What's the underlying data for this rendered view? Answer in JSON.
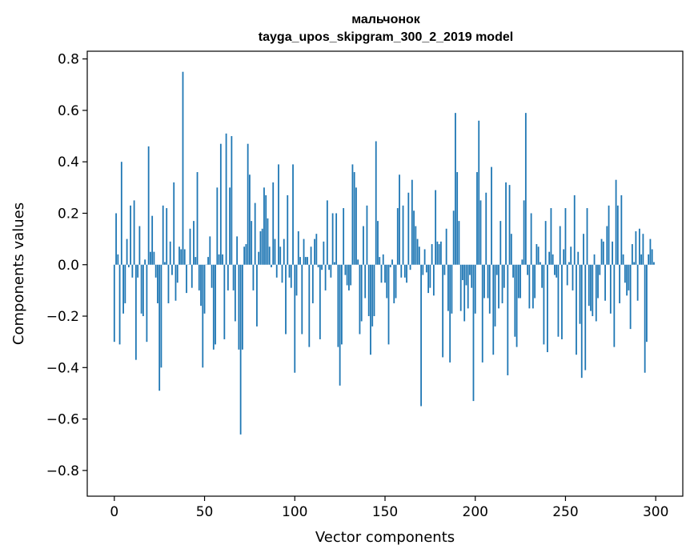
{
  "chart_data": {
    "type": "bar",
    "title": "мальчонок",
    "subtitle": "tayga_upos_skipgram_300_2_2019 model",
    "xlabel": "Vector components",
    "ylabel": "Components values",
    "xlim": [
      -15,
      315
    ],
    "ylim": [
      -0.9,
      0.83
    ],
    "xticks": [
      0,
      50,
      100,
      150,
      200,
      250,
      300
    ],
    "xtick_labels": [
      "0",
      "50",
      "100",
      "150",
      "200",
      "250",
      "300"
    ],
    "yticks": [
      -0.8,
      -0.6,
      -0.4,
      -0.2,
      0.0,
      0.2,
      0.4,
      0.6,
      0.8
    ],
    "ytick_labels": [
      "−0.8",
      "−0.6",
      "−0.4",
      "−0.2",
      "0.0",
      "0.2",
      "0.4",
      "0.6",
      "0.8"
    ],
    "bar_color": "#1f77b4",
    "grid": false,
    "legend": "none",
    "x": [
      0,
      1,
      2,
      3,
      4,
      5,
      6,
      7,
      8,
      9,
      10,
      11,
      12,
      13,
      14,
      15,
      16,
      17,
      18,
      19,
      20,
      21,
      22,
      23,
      24,
      25,
      26,
      27,
      28,
      29,
      30,
      31,
      32,
      33,
      34,
      35,
      36,
      37,
      38,
      39,
      40,
      41,
      42,
      43,
      44,
      45,
      46,
      47,
      48,
      49,
      50,
      51,
      52,
      53,
      54,
      55,
      56,
      57,
      58,
      59,
      60,
      61,
      62,
      63,
      64,
      65,
      66,
      67,
      68,
      69,
      70,
      71,
      72,
      73,
      74,
      75,
      76,
      77,
      78,
      79,
      80,
      81,
      82,
      83,
      84,
      85,
      86,
      87,
      88,
      89,
      90,
      91,
      92,
      93,
      94,
      95,
      96,
      97,
      98,
      99,
      100,
      101,
      102,
      103,
      104,
      105,
      106,
      107,
      108,
      109,
      110,
      111,
      112,
      113,
      114,
      115,
      116,
      117,
      118,
      119,
      120,
      121,
      122,
      123,
      124,
      125,
      126,
      127,
      128,
      129,
      130,
      131,
      132,
      133,
      134,
      135,
      136,
      137,
      138,
      139,
      140,
      141,
      142,
      143,
      144,
      145,
      146,
      147,
      148,
      149,
      150,
      151,
      152,
      153,
      154,
      155,
      156,
      157,
      158,
      159,
      160,
      161,
      162,
      163,
      164,
      165,
      166,
      167,
      168,
      169,
      170,
      171,
      172,
      173,
      174,
      175,
      176,
      177,
      178,
      179,
      180,
      181,
      182,
      183,
      184,
      185,
      186,
      187,
      188,
      189,
      190,
      191,
      192,
      193,
      194,
      195,
      196,
      197,
      198,
      199,
      200,
      201,
      202,
      203,
      204,
      205,
      206,
      207,
      208,
      209,
      210,
      211,
      212,
      213,
      214,
      215,
      216,
      217,
      218,
      219,
      220,
      221,
      222,
      223,
      224,
      225,
      226,
      227,
      228,
      229,
      230,
      231,
      232,
      233,
      234,
      235,
      236,
      237,
      238,
      239,
      240,
      241,
      242,
      243,
      244,
      245,
      246,
      247,
      248,
      249,
      250,
      251,
      252,
      253,
      254,
      255,
      256,
      257,
      258,
      259,
      260,
      261,
      262,
      263,
      264,
      265,
      266,
      267,
      268,
      269,
      270,
      271,
      272,
      273,
      274,
      275,
      276,
      277,
      278,
      279,
      280,
      281,
      282,
      283,
      284,
      285,
      286,
      287,
      288,
      289,
      290,
      291,
      292,
      293,
      294,
      295,
      296,
      297,
      298,
      299
    ],
    "values": [
      -0.3,
      0.2,
      0.04,
      -0.31,
      0.4,
      -0.19,
      -0.15,
      0.1,
      -0.01,
      0.23,
      -0.05,
      0.25,
      -0.37,
      -0.05,
      0.15,
      -0.19,
      -0.2,
      0.02,
      -0.3,
      0.46,
      0.05,
      0.19,
      0.05,
      -0.05,
      -0.15,
      -0.49,
      -0.4,
      0.23,
      0.01,
      0.22,
      -0.15,
      0.09,
      -0.04,
      0.32,
      -0.14,
      -0.07,
      0.07,
      0.06,
      0.75,
      0.06,
      -0.11,
      0.0,
      0.14,
      -0.09,
      0.17,
      0.03,
      0.36,
      -0.1,
      -0.16,
      -0.4,
      -0.19,
      0.0,
      0.03,
      0.11,
      -0.09,
      -0.33,
      -0.31,
      0.3,
      0.04,
      0.47,
      0.04,
      -0.29,
      0.51,
      -0.1,
      0.3,
      0.5,
      -0.1,
      -0.22,
      0.11,
      -0.33,
      -0.66,
      -0.33,
      0.07,
      0.08,
      0.47,
      0.35,
      0.17,
      -0.1,
      0.24,
      -0.24,
      0.05,
      0.13,
      0.14,
      0.3,
      0.27,
      0.18,
      0.07,
      -0.01,
      0.32,
      0.1,
      -0.05,
      0.39,
      0.07,
      -0.07,
      0.1,
      -0.27,
      0.27,
      -0.05,
      -0.09,
      0.39,
      -0.42,
      -0.12,
      0.13,
      0.03,
      -0.27,
      0.1,
      0.03,
      0.03,
      -0.32,
      0.07,
      -0.15,
      0.1,
      0.12,
      -0.01,
      -0.29,
      -0.02,
      0.09,
      -0.1,
      0.25,
      -0.02,
      -0.05,
      0.2,
      0.01,
      0.2,
      -0.32,
      -0.47,
      -0.31,
      0.22,
      -0.04,
      -0.08,
      -0.1,
      -0.08,
      0.39,
      0.36,
      0.3,
      0.02,
      -0.27,
      -0.22,
      0.15,
      -0.13,
      0.23,
      -0.2,
      -0.35,
      -0.24,
      -0.2,
      0.48,
      0.17,
      0.03,
      -0.07,
      0.04,
      -0.07,
      -0.13,
      -0.31,
      -0.01,
      0.02,
      -0.15,
      -0.13,
      0.22,
      0.35,
      -0.05,
      0.23,
      -0.05,
      -0.07,
      0.28,
      -0.02,
      0.33,
      0.21,
      0.15,
      0.1,
      0.07,
      -0.55,
      -0.04,
      0.06,
      -0.03,
      -0.11,
      -0.09,
      0.08,
      -0.12,
      0.29,
      0.09,
      0.08,
      0.09,
      -0.36,
      -0.04,
      0.14,
      -0.18,
      -0.38,
      -0.19,
      0.21,
      0.59,
      0.36,
      0.17,
      -0.18,
      -0.06,
      -0.22,
      -0.08,
      -0.17,
      -0.04,
      -0.09,
      -0.53,
      -0.19,
      0.36,
      0.56,
      0.25,
      -0.38,
      -0.13,
      0.28,
      -0.13,
      -0.19,
      0.38,
      -0.35,
      -0.24,
      -0.04,
      -0.17,
      0.17,
      -0.15,
      -0.09,
      0.32,
      -0.43,
      0.31,
      0.12,
      -0.05,
      -0.28,
      -0.32,
      -0.13,
      -0.13,
      0.02,
      0.25,
      0.59,
      -0.04,
      -0.17,
      0.2,
      -0.17,
      -0.13,
      0.08,
      0.07,
      0.01,
      -0.09,
      -0.31,
      0.17,
      -0.34,
      0.05,
      0.22,
      0.04,
      -0.04,
      -0.05,
      -0.28,
      0.15,
      -0.29,
      0.06,
      0.22,
      -0.08,
      0.01,
      0.07,
      -0.1,
      0.27,
      -0.35,
      0.05,
      -0.23,
      -0.44,
      0.12,
      -0.41,
      0.22,
      -0.16,
      -0.18,
      -0.2,
      0.04,
      -0.22,
      -0.13,
      -0.04,
      0.1,
      0.09,
      -0.14,
      0.15,
      0.23,
      -0.19,
      0.09,
      -0.32,
      0.33,
      0.23,
      -0.15,
      0.27,
      0.04,
      -0.07,
      -0.12,
      -0.1,
      -0.25,
      0.08,
      0.01,
      0.13,
      -0.14,
      0.14,
      0.04,
      0.12,
      -0.42,
      -0.3,
      0.04,
      0.1,
      0.06,
      0.01
    ]
  }
}
